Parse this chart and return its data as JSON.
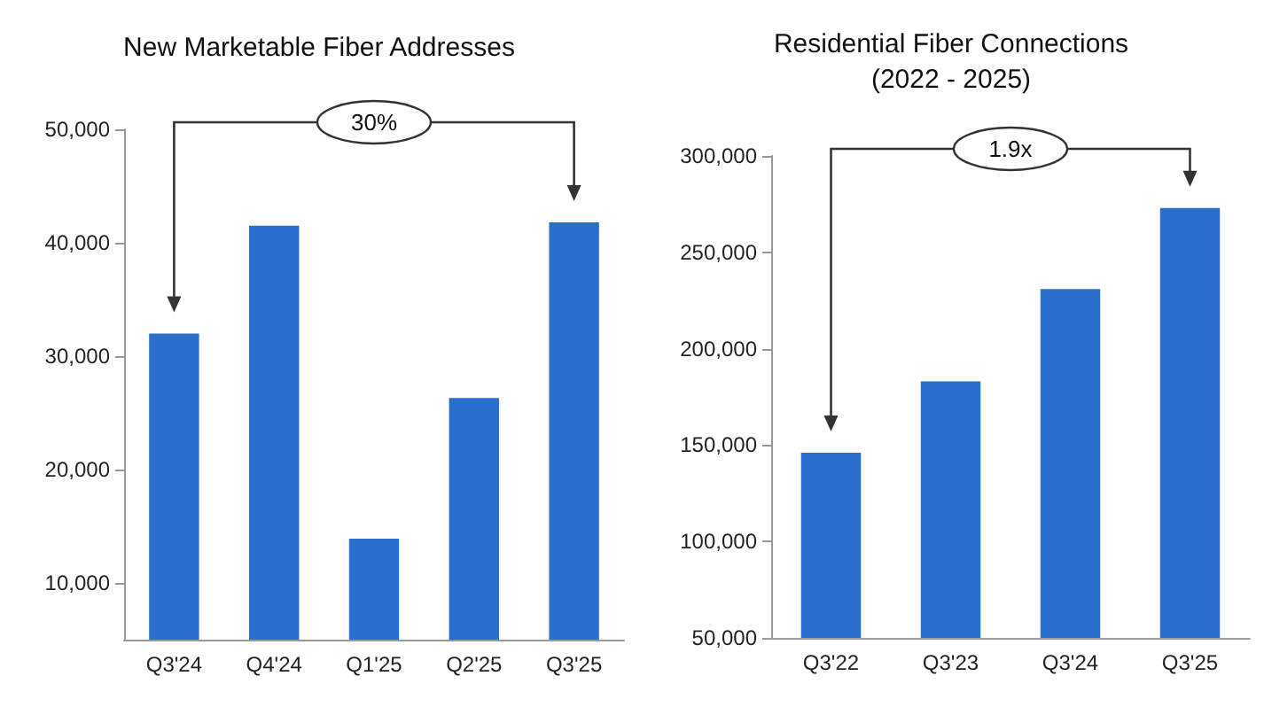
{
  "chart_data": [
    {
      "type": "bar",
      "title": "New Marketable Fiber Addresses",
      "categories": [
        "Q3'24",
        "Q4'24",
        "Q1'25",
        "Q2'25",
        "Q3'25"
      ],
      "values": [
        32000,
        41500,
        13900,
        26300,
        41800
      ],
      "color": "#2a6fcb",
      "ylim": [
        5000,
        50000
      ],
      "yticks": [
        {
          "value": 10000,
          "label": "10,000"
        },
        {
          "value": 20000,
          "label": "20,000"
        },
        {
          "value": 30000,
          "label": "30,000"
        },
        {
          "value": 40000,
          "label": "40,000"
        },
        {
          "value": 50000,
          "label": "50,000"
        }
      ],
      "grid": false,
      "annotations": [
        "30%"
      ]
    },
    {
      "type": "bar",
      "title": "Residential Fiber Connections\n(2022 - 2025)",
      "categories": [
        "Q3'22",
        "Q3'23",
        "Q3'24",
        "Q3'25"
      ],
      "values": [
        146000,
        183000,
        231000,
        273000
      ],
      "color": "#2a6fcb",
      "ylim": [
        50000,
        300000
      ],
      "yticks": [
        {
          "value": 50000,
          "label": "50,000"
        },
        {
          "value": 100000,
          "label": "100,000"
        },
        {
          "value": 150000,
          "label": "150,000"
        },
        {
          "value": 200000,
          "label": "200,000"
        },
        {
          "value": 250000,
          "label": "250,000"
        },
        {
          "value": 300000,
          "label": "300,000"
        }
      ],
      "grid": false,
      "annotations": [
        "1.9x"
      ]
    }
  ]
}
